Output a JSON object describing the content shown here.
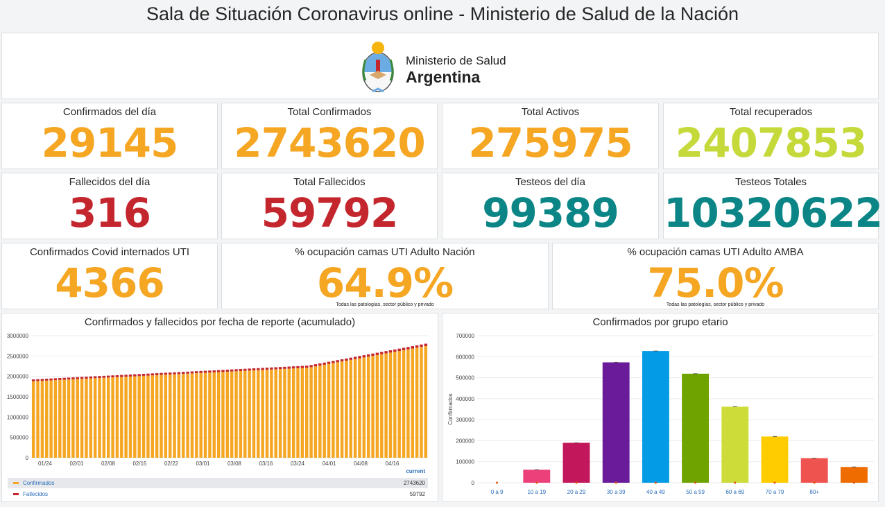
{
  "header": {
    "title": "Sala de Situación Coronavirus online - Ministerio de Salud de la Nación"
  },
  "logo": {
    "line1": "Ministerio de Salud",
    "line2": "Argentina",
    "icon": "coat-of-arms-icon"
  },
  "colors": {
    "orange": "#f5a623",
    "red": "#c4262e",
    "green": "#c6d93a",
    "teal": "#0b8585"
  },
  "stats": [
    {
      "label": "Confirmados del día",
      "value": "29145",
      "color": "#f5a623"
    },
    {
      "label": "Total Confirmados",
      "value": "2743620",
      "color": "#f5a623"
    },
    {
      "label": "Total Activos",
      "value": "275975",
      "color": "#f5a623"
    },
    {
      "label": "Total recuperados",
      "value": "2407853",
      "color": "#c6d93a"
    },
    {
      "label": "Fallecidos del día",
      "value": "316",
      "color": "#c4262e"
    },
    {
      "label": "Total Fallecidos",
      "value": "59792",
      "color": "#c4262e"
    },
    {
      "label": "Testeos del día",
      "value": "99389",
      "color": "#0b8585"
    },
    {
      "label": "Testeos Totales",
      "value": "10320622",
      "color": "#0b8585"
    },
    {
      "label": "Confirmados Covid internados UTI",
      "value": "4366",
      "color": "#f5a623"
    },
    {
      "label": "% ocupación camas UTI Adulto Nación",
      "value": "64.9%",
      "color": "#f5a623",
      "note": "Todas las patologías, sector público y privado"
    },
    {
      "label": "% ocupación camas UTI Adulto AMBA",
      "value": "75.0%",
      "color": "#f5a623",
      "note": "Todas las patologías, sector público y privado"
    }
  ],
  "legend": {
    "header": "current",
    "items": [
      {
        "name": "Confirmados",
        "value": "2743620",
        "color": "#f5a623"
      },
      {
        "name": "Fallecidos",
        "value": "59792",
        "color": "#c4262e"
      }
    ]
  },
  "chart_data": [
    {
      "type": "bar",
      "title": "Confirmados y fallecidos por fecha de reporte (acumulado)",
      "stacked": true,
      "x_tick_labels": [
        "01/24",
        "02/01",
        "02/08",
        "02/15",
        "02/22",
        "03/01",
        "03/08",
        "03/16",
        "03/24",
        "04/01",
        "04/08",
        "04/16"
      ],
      "y_tick_labels": [
        "0",
        "500000",
        "1000000",
        "1500000",
        "2000000",
        "2500000",
        "3000000"
      ],
      "ylim": [
        0,
        3000000
      ],
      "n_bars": 90,
      "series": [
        {
          "name": "Confirmados",
          "color": "#f5a623",
          "start": 1880000,
          "end": 2743620
        },
        {
          "name": "Fallecidos",
          "color": "#c4262e",
          "start": 47000,
          "end": 59792
        }
      ],
      "grid": true,
      "legend": "bottom"
    },
    {
      "type": "bar",
      "title": "Confirmados por grupo etario",
      "ylabel": "Confirmados",
      "categories": [
        "0 a 9",
        "10 a 19",
        "20 a 29",
        "30 a 39",
        "40 a 49",
        "50 a 59",
        "60 a 69",
        "70 a 79",
        "80+",
        ""
      ],
      "values": [
        0,
        62000,
        190000,
        573000,
        627000,
        519000,
        362000,
        220000,
        117000,
        75000
      ],
      "colors": [
        "#f48fb1",
        "#ec407a",
        "#c2185b",
        "#6a1b9a",
        "#039be5",
        "#6fa300",
        "#cddc39",
        "#ffcc00",
        "#ef5350",
        "#ef6c00"
      ],
      "y_tick_labels": [
        "0",
        "100000",
        "200000",
        "300000",
        "400000",
        "500000",
        "600000",
        "700000"
      ],
      "ylim": [
        0,
        700000
      ],
      "grid": true
    }
  ]
}
